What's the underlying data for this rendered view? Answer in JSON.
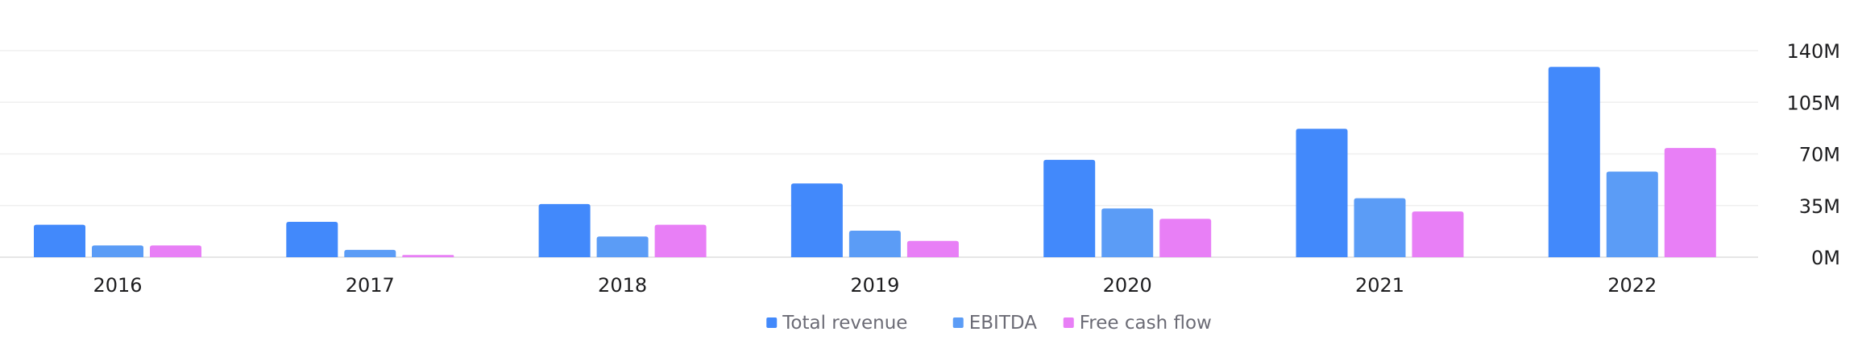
{
  "chart_data": {
    "type": "bar",
    "title": "",
    "xlabel": "",
    "ylabel": "",
    "categories": [
      "2016",
      "2017",
      "2018",
      "2019",
      "2020",
      "2021",
      "2022"
    ],
    "series": [
      {
        "name": "Total revenue",
        "color": "#4289fb",
        "values": [
          22,
          24,
          36,
          50,
          66,
          87,
          129
        ]
      },
      {
        "name": "EBITDA",
        "color": "#5b9cf6",
        "values": [
          8,
          5,
          14,
          18,
          33,
          40,
          58
        ]
      },
      {
        "name": "Free cash flow",
        "color": "#e87ff6",
        "values": [
          8,
          1.5,
          22,
          11,
          26,
          31,
          74
        ]
      }
    ],
    "ylim": [
      0,
      140
    ],
    "yticks": [
      0,
      35,
      70,
      105,
      140
    ],
    "ytick_labels": [
      "0M",
      "35M",
      "70M",
      "105M",
      "140M"
    ],
    "y_axis_side": "right",
    "grid": true,
    "legend_position": "bottom-center"
  }
}
